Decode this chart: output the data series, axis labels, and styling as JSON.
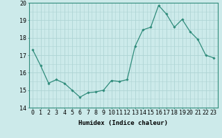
{
  "x": [
    0,
    1,
    2,
    3,
    4,
    5,
    6,
    7,
    8,
    9,
    10,
    11,
    12,
    13,
    14,
    15,
    16,
    17,
    18,
    19,
    20,
    21,
    22,
    23
  ],
  "y": [
    17.3,
    16.4,
    15.4,
    15.6,
    15.4,
    15.0,
    14.6,
    14.85,
    14.9,
    15.0,
    15.55,
    15.5,
    15.6,
    17.5,
    18.45,
    18.6,
    19.85,
    19.35,
    18.6,
    19.05,
    18.35,
    17.9,
    17.0,
    16.85
  ],
  "line_color": "#2e8b7a",
  "marker": "D",
  "marker_size": 1.8,
  "line_width": 0.9,
  "bg_color": "#cceaea",
  "grid_color": "#aed4d4",
  "xlabel": "Humidex (Indice chaleur)",
  "ylabel": "",
  "title": "",
  "xlim": [
    -0.5,
    23.5
  ],
  "ylim": [
    14,
    20
  ],
  "yticks": [
    14,
    15,
    16,
    17,
    18,
    19,
    20
  ],
  "xtick_labels": [
    "0",
    "1",
    "2",
    "3",
    "4",
    "5",
    "6",
    "7",
    "8",
    "9",
    "10",
    "11",
    "12",
    "13",
    "14",
    "15",
    "16",
    "17",
    "18",
    "19",
    "20",
    "21",
    "22",
    "23"
  ],
  "xlabel_fontsize": 6.5,
  "tick_fontsize": 6.0
}
